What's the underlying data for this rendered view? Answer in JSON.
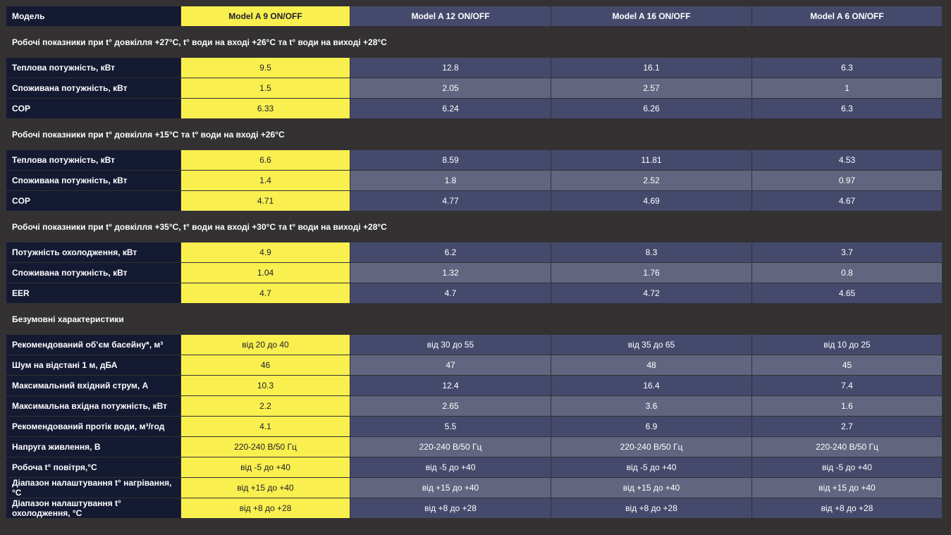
{
  "header": {
    "label": "Модель",
    "models": [
      "Model A 9 ON/OFF",
      "Model A 12 ON/OFF",
      "Model A 16 ON/OFF",
      "Model A 6 ON/OFF"
    ]
  },
  "sections": [
    {
      "title": "Робочі показники при t° довкілля +27°C, t° води на вході +26°C та t° води на виході +28°C",
      "rows": [
        {
          "label": "Теплова потужність, кВт",
          "values": [
            "9.5",
            "12.8",
            "16.1",
            "6.3"
          ]
        },
        {
          "label": "Споживана потужність, кВт",
          "values": [
            "1.5",
            "2.05",
            "2.57",
            "1"
          ]
        },
        {
          "label": "COP",
          "values": [
            "6.33",
            "6.24",
            "6.26",
            "6.3"
          ]
        }
      ]
    },
    {
      "title": "Робочі показники при t° довкілля +15°C та t° води на вході +26°C",
      "rows": [
        {
          "label": "Теплова потужність, кВт",
          "values": [
            "6.6",
            "8.59",
            "11.81",
            "4.53"
          ]
        },
        {
          "label": "Споживана потужність, кВт",
          "values": [
            "1.4",
            "1.8",
            "2.52",
            "0.97"
          ]
        },
        {
          "label": "COP",
          "values": [
            "4.71",
            "4.77",
            "4.69",
            "4.67"
          ]
        }
      ]
    },
    {
      "title": "Робочі показники при t° довкілля +35°C, t° води на вході +30°C та t° води на виході +28°C",
      "rows": [
        {
          "label": "Потужність охолодження, кВт",
          "values": [
            "4.9",
            "6.2",
            "8.3",
            "3.7"
          ]
        },
        {
          "label": "Споживана потужність, кВт",
          "values": [
            "1.04",
            "1.32",
            "1.76",
            "0.8"
          ]
        },
        {
          "label": "EER",
          "values": [
            "4.7",
            "4.7",
            "4.72",
            "4.65"
          ]
        }
      ]
    },
    {
      "title": "Безумовні характеристики",
      "rows": [
        {
          "label": "Рекомендований об’єм басейну*, м³",
          "values": [
            "від 20 до 40",
            "від 30 до 55",
            "від 35 до 65",
            "від 10 до 25"
          ]
        },
        {
          "label": "Шум на відстані 1 м, дБА",
          "values": [
            "46",
            "47",
            "48",
            "45"
          ]
        },
        {
          "label": "Максимальний вхідний струм, А",
          "values": [
            "10.3",
            "12.4",
            "16.4",
            "7.4"
          ]
        },
        {
          "label": "Максимальна вхідна потужність, кВт",
          "values": [
            "2.2",
            "2.65",
            "3.6",
            "1.6"
          ]
        },
        {
          "label": "Рекомендований протік води, м³/год",
          "values": [
            "4.1",
            "5.5",
            "6.9",
            "2.7"
          ]
        },
        {
          "label": "Напруга живлення, В",
          "values": [
            "220-240 В/50 Гц",
            "220-240 В/50 Гц",
            "220-240 В/50 Гц",
            "220-240 В/50 Гц"
          ]
        },
        {
          "label": "Робоча t° повітря,°С",
          "values": [
            "від -5 до +40",
            "від -5 до +40",
            "від -5 до +40",
            "від -5 до +40"
          ]
        },
        {
          "label": "Діапазон налаштування t° нагрівання,°С",
          "values": [
            "від +15 до +40",
            "від +15 до +40",
            "від +15 до +40",
            "від +15 до +40"
          ]
        },
        {
          "label": "Діапазон налаштування t° охолодження, °С",
          "values": [
            "від +8 до +28",
            "від +8 до +28",
            "від +8 до +28",
            "від +8 до +28"
          ]
        }
      ]
    }
  ],
  "colors": {
    "background": "#333132",
    "label_cell": "#151a33",
    "highlight": "#f9ef4f",
    "cell_dark": "#454a6d",
    "cell_light": "#61657f"
  }
}
